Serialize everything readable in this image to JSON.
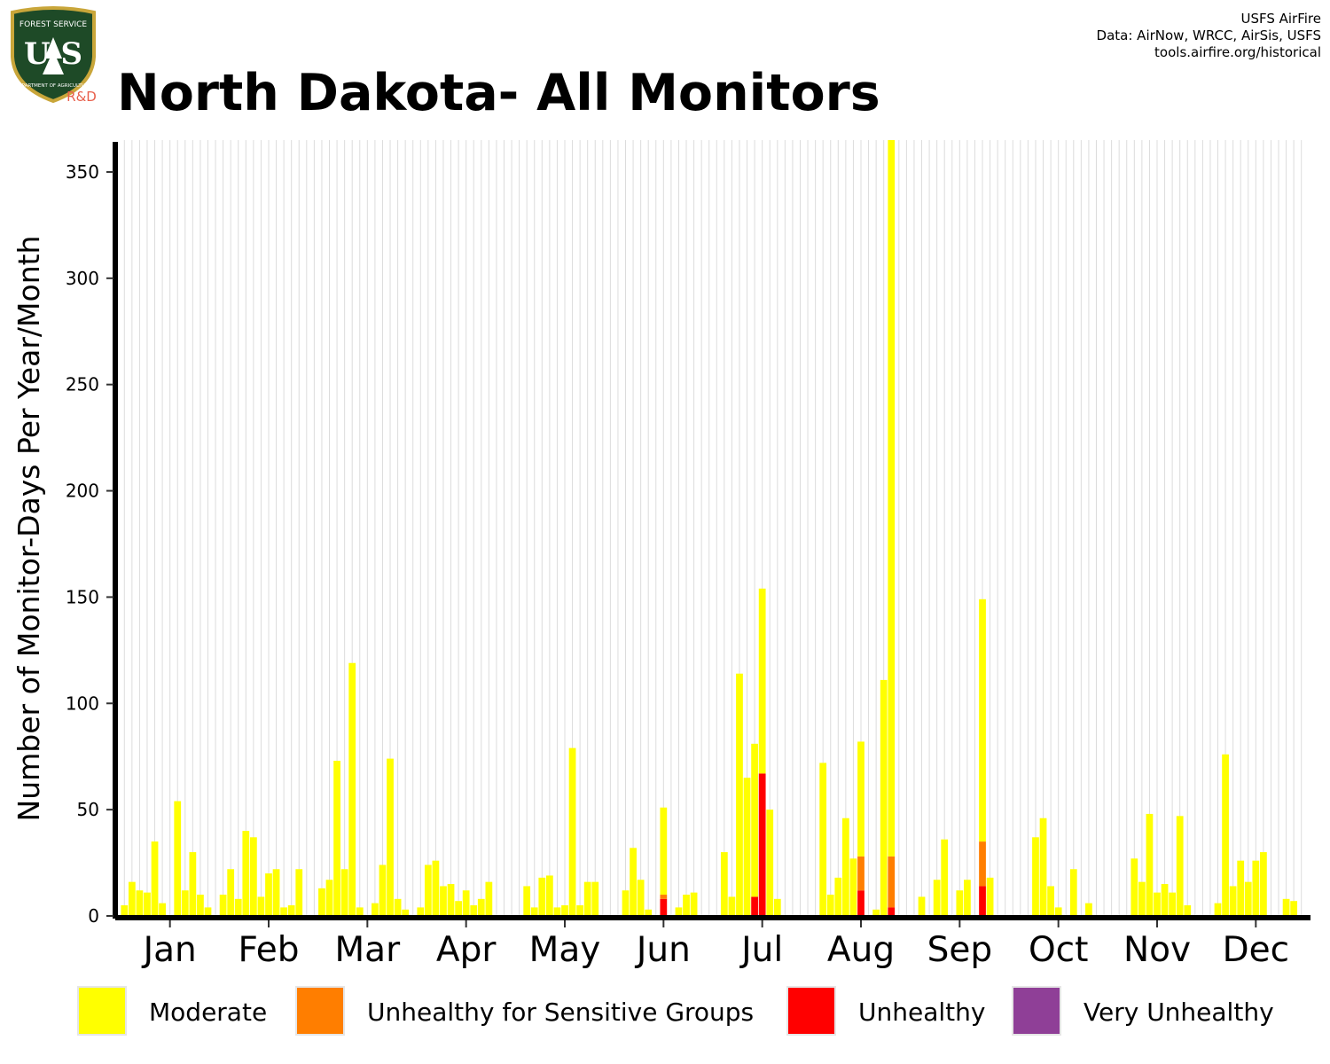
{
  "logo": {
    "top_text": "FOREST SERVICE",
    "letters": "U S",
    "bottom_text": "DEPARTMENT OF AGRICULTURE",
    "badge": "R&D",
    "colors": {
      "shield": "#1e4a27",
      "border": "#c9a63a",
      "badge": "#e8604c"
    }
  },
  "title": "North Dakota- All Monitors",
  "credits": [
    "USFS AirFire",
    "Data: AirNow, WRCC, AirSis, USFS",
    "tools.airfire.org/historical"
  ],
  "chart_data": {
    "type": "bar",
    "stacked": true,
    "ylabel": "Number of Monitor-Days Per Year/Month",
    "xlabel": "",
    "ylim": [
      0,
      365
    ],
    "yticks": [
      0,
      50,
      100,
      150,
      200,
      250,
      300,
      350
    ],
    "months": [
      "Jan",
      "Feb",
      "Mar",
      "Apr",
      "May",
      "Jun",
      "Jul",
      "Aug",
      "Sep",
      "Oct",
      "Nov",
      "Dec"
    ],
    "years_per_month": 13,
    "grid": {
      "vertical_lines": true,
      "horizontal_lines": false,
      "color": "#dcdcdc"
    },
    "legend": {
      "position": "bottom"
    },
    "series": [
      {
        "name": "Moderate",
        "color": "#ffff00",
        "values": [
          [
            5,
            16,
            12,
            11,
            35,
            6,
            0,
            54,
            12,
            30,
            10,
            4,
            0
          ],
          [
            10,
            22,
            8,
            40,
            37,
            9,
            20,
            22,
            4,
            5,
            22,
            0,
            0
          ],
          [
            13,
            17,
            73,
            22,
            119,
            4,
            0,
            6,
            24,
            74,
            8,
            3,
            0
          ],
          [
            4,
            24,
            26,
            14,
            15,
            7,
            12,
            5,
            8,
            16,
            0,
            0,
            0
          ],
          [
            0,
            14,
            4,
            18,
            19,
            4,
            5,
            79,
            5,
            16,
            16,
            0,
            0
          ],
          [
            0,
            12,
            32,
            17,
            3,
            0,
            41,
            0,
            4,
            10,
            11,
            0,
            0
          ],
          [
            0,
            30,
            9,
            114,
            65,
            72,
            87,
            50,
            8,
            0,
            0,
            0,
            0
          ],
          [
            0,
            72,
            10,
            18,
            46,
            27,
            54,
            0,
            3,
            111,
            337,
            0,
            0
          ],
          [
            0,
            9,
            0,
            17,
            36,
            0,
            12,
            17,
            0,
            114,
            18,
            0,
            0
          ],
          [
            0,
            0,
            0,
            37,
            46,
            14,
            4,
            0,
            22,
            0,
            6,
            0,
            0
          ],
          [
            0,
            0,
            0,
            27,
            16,
            48,
            11,
            15,
            11,
            47,
            5,
            0,
            0
          ],
          [
            0,
            6,
            76,
            14,
            26,
            16,
            26,
            30,
            0,
            0,
            8,
            7,
            0
          ]
        ]
      },
      {
        "name": "Unhealthy for Sensitive Groups",
        "color": "#ff7e00",
        "values": [
          [
            0,
            0,
            0,
            0,
            0,
            0,
            0,
            0,
            0,
            0,
            0,
            0,
            0
          ],
          [
            0,
            0,
            0,
            0,
            0,
            0,
            0,
            0,
            0,
            0,
            0,
            0,
            0
          ],
          [
            0,
            0,
            0,
            0,
            0,
            0,
            0,
            0,
            0,
            0,
            0,
            0,
            0
          ],
          [
            0,
            0,
            0,
            0,
            0,
            0,
            0,
            0,
            0,
            0,
            0,
            0,
            0
          ],
          [
            0,
            0,
            0,
            0,
            0,
            0,
            0,
            0,
            0,
            0,
            0,
            0,
            0
          ],
          [
            0,
            0,
            0,
            0,
            0,
            0,
            2,
            0,
            0,
            0,
            0,
            0,
            0
          ],
          [
            0,
            0,
            0,
            0,
            0,
            0,
            0,
            0,
            0,
            0,
            0,
            0,
            0
          ],
          [
            0,
            0,
            0,
            0,
            0,
            0,
            16,
            0,
            0,
            0,
            24,
            0,
            0
          ],
          [
            0,
            0,
            0,
            0,
            0,
            0,
            0,
            0,
            0,
            21,
            0,
            0,
            0
          ],
          [
            0,
            0,
            0,
            0,
            0,
            0,
            0,
            0,
            0,
            0,
            0,
            0,
            0
          ],
          [
            0,
            0,
            0,
            0,
            0,
            0,
            0,
            0,
            0,
            0,
            0,
            0,
            0
          ],
          [
            0,
            0,
            0,
            0,
            0,
            0,
            0,
            0,
            0,
            0,
            0,
            0,
            0
          ]
        ]
      },
      {
        "name": "Unhealthy",
        "color": "#ff0000",
        "values": [
          [
            0,
            0,
            0,
            0,
            0,
            0,
            0,
            0,
            0,
            0,
            0,
            0,
            0
          ],
          [
            0,
            0,
            0,
            0,
            0,
            0,
            0,
            0,
            0,
            0,
            0,
            0,
            0
          ],
          [
            0,
            0,
            0,
            0,
            0,
            0,
            0,
            0,
            0,
            0,
            0,
            0,
            0
          ],
          [
            0,
            0,
            0,
            0,
            0,
            0,
            0,
            0,
            0,
            0,
            0,
            0,
            0
          ],
          [
            0,
            0,
            0,
            0,
            0,
            0,
            0,
            0,
            0,
            0,
            0,
            0,
            0
          ],
          [
            0,
            0,
            0,
            0,
            0,
            0,
            8,
            0,
            0,
            0,
            0,
            0,
            0
          ],
          [
            0,
            0,
            0,
            0,
            0,
            9,
            67,
            0,
            0,
            0,
            0,
            0,
            0
          ],
          [
            0,
            0,
            0,
            0,
            0,
            0,
            12,
            0,
            0,
            0,
            4,
            0,
            0
          ],
          [
            0,
            0,
            0,
            0,
            0,
            0,
            0,
            0,
            0,
            14,
            0,
            0,
            0
          ],
          [
            0,
            0,
            0,
            0,
            0,
            0,
            0,
            0,
            0,
            0,
            0,
            0,
            0
          ],
          [
            0,
            0,
            0,
            0,
            0,
            0,
            0,
            0,
            0,
            0,
            0,
            0,
            0
          ],
          [
            0,
            0,
            0,
            0,
            0,
            0,
            0,
            0,
            0,
            0,
            0,
            0,
            0
          ]
        ]
      },
      {
        "name": "Very Unhealthy",
        "color": "#8f3f97",
        "values": [
          [
            0,
            0,
            0,
            0,
            0,
            0,
            0,
            0,
            0,
            0,
            0,
            0,
            0
          ],
          [
            0,
            0,
            0,
            0,
            0,
            0,
            0,
            0,
            0,
            0,
            0,
            0,
            0
          ],
          [
            0,
            0,
            0,
            0,
            0,
            0,
            0,
            0,
            0,
            0,
            0,
            0,
            0
          ],
          [
            0,
            0,
            0,
            0,
            0,
            0,
            0,
            0,
            0,
            0,
            0,
            0,
            0
          ],
          [
            0,
            0,
            0,
            0,
            0,
            0,
            0,
            0,
            0,
            0,
            0,
            0,
            0
          ],
          [
            0,
            0,
            0,
            0,
            0,
            0,
            0,
            0,
            0,
            0,
            0,
            0,
            0
          ],
          [
            0,
            0,
            0,
            0,
            0,
            0,
            0,
            0,
            0,
            0,
            0,
            0,
            0
          ],
          [
            0,
            0,
            0,
            0,
            0,
            0,
            0,
            0,
            0,
            0,
            0,
            0,
            0
          ],
          [
            0,
            0,
            0,
            0,
            0,
            0,
            0,
            0,
            0,
            0,
            0,
            0,
            0
          ],
          [
            0,
            0,
            0,
            0,
            0,
            0,
            0,
            0,
            0,
            0,
            0,
            0,
            0
          ],
          [
            0,
            0,
            0,
            0,
            0,
            0,
            0,
            0,
            0,
            0,
            0,
            0,
            0
          ],
          [
            0,
            0,
            0,
            0,
            0,
            0,
            0,
            0,
            0,
            0,
            0,
            0,
            0
          ]
        ]
      }
    ]
  }
}
